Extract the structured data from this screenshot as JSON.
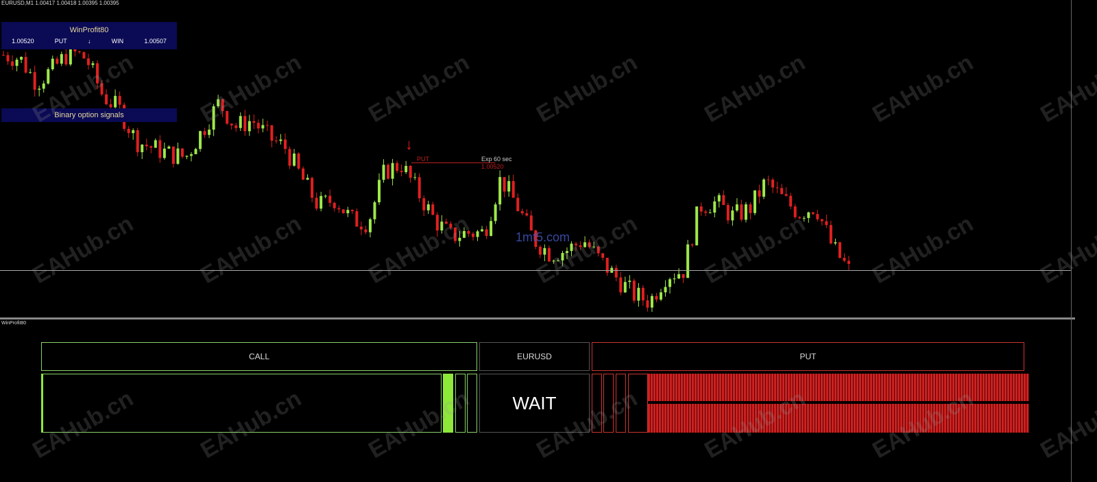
{
  "header": {
    "symbol_line": "EURUSD,M1  1.00417 1.00418 1.00395 1.00395"
  },
  "winprofit_panel": {
    "title": "WinProfit80",
    "entry": "1.00520",
    "direction": "PUT",
    "arrow": "↓",
    "result": "WIN",
    "close": "1.00507"
  },
  "signals_label": "Binary option signals",
  "signal": {
    "label": "PUT",
    "expiry": "Exp 60 sec",
    "price": "1.00520",
    "arrow": "↓"
  },
  "watermark": "EAHub.cn",
  "site_watermark": "1mt5.com",
  "chart": {
    "current_price": 1.00395,
    "up_color": "#9ee84a",
    "down_color": "#e02020",
    "price_path": [
      1.00643,
      1.00639,
      1.00611,
      1.00627,
      1.00647,
      1.00639,
      1.00596,
      1.0058,
      1.00544,
      1.00536,
      1.00529,
      1.00525,
      1.00556,
      1.00588,
      1.0056,
      1.00568,
      1.00548,
      1.00536,
      1.00501,
      1.00469,
      1.00477,
      1.00453,
      1.0045,
      1.00509,
      1.00517,
      1.00485,
      1.00453,
      1.00434,
      1.00438,
      1.00438,
      1.00501,
      1.00469,
      1.0043,
      1.00414,
      1.00418,
      1.0043,
      1.00406,
      1.00386,
      1.00367,
      1.00359,
      1.0039,
      1.00394,
      1.00469,
      1.00473,
      1.00457,
      1.00465,
      1.00497,
      1.00477,
      1.00461,
      1.00469,
      1.00422,
      1.00395
    ]
  },
  "subwindow": {
    "label": "WinProfit80",
    "call": "CALL",
    "symbol": "EURUSD",
    "put": "PUT",
    "status": "WAIT",
    "call_strength": 0.0,
    "put_strength": 1.0
  }
}
